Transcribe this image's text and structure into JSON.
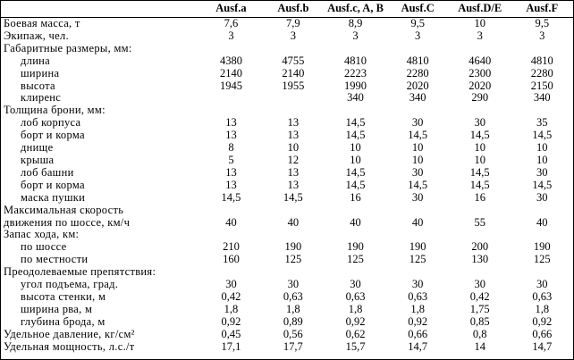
{
  "table": {
    "header": [
      "Ausf.a",
      "Ausf.b",
      "Ausf.c, A, B",
      "Ausf.C",
      "Ausf.D/E",
      "Ausf.F"
    ],
    "rows": [
      {
        "label": "Боевая масса, т",
        "cells": [
          "7,6",
          "7,9",
          "8,9",
          "9,5",
          "10",
          "9,5"
        ]
      },
      {
        "label": "Экипаж, чел.",
        "cells": [
          "3",
          "3",
          "3",
          "3",
          "3",
          "3"
        ]
      },
      {
        "label": "Габаритные размеры, мм:",
        "items": [
          {
            "label": "длина",
            "cells": [
              "4380",
              "4755",
              "4810",
              "4810",
              "4640",
              "4810"
            ]
          },
          {
            "label": "ширина",
            "cells": [
              "2140",
              "2140",
              "2223",
              "2280",
              "2300",
              "2280"
            ]
          },
          {
            "label": "высота",
            "cells": [
              "1945",
              "1955",
              "1990",
              "2020",
              "2020",
              "2150"
            ]
          },
          {
            "label": "клиренс",
            "cells": [
              null,
              null,
              "340",
              "340",
              "290",
              "340"
            ]
          }
        ]
      },
      {
        "label": "Толщина брони, мм:",
        "items": [
          {
            "label": "лоб корпуса",
            "cells": [
              "13",
              "13",
              "14,5",
              "30",
              "30",
              "35"
            ]
          },
          {
            "label": "борт и корма",
            "cells": [
              "13",
              "13",
              "14,5",
              "14,5",
              "14,5",
              "14,5"
            ]
          },
          {
            "label": "днище",
            "cells": [
              "8",
              "10",
              "10",
              "10",
              "10",
              "10"
            ]
          },
          {
            "label": "крыша",
            "cells": [
              "5",
              "12",
              "10",
              "10",
              "10",
              "10"
            ]
          },
          {
            "label": "лоб башни",
            "cells": [
              "13",
              "13",
              "14,5",
              "30",
              "14,5",
              "30"
            ]
          },
          {
            "label": "борт и корма",
            "cells": [
              "13",
              "13",
              "14,5",
              "14,5",
              "14,5",
              "14,5"
            ]
          },
          {
            "label": "маска пушки",
            "cells": [
              "14,5",
              "14,5",
              "16",
              "30",
              "16",
              "30"
            ]
          }
        ]
      },
      {
        "label": [
          "Максимальная скорость",
          "движения по шоссе, км/ч"
        ],
        "cells": [
          "40",
          "40",
          "40",
          "40",
          "55",
          "40"
        ]
      },
      {
        "label": "Запас хода, км:",
        "items": [
          {
            "label": "по шоссе",
            "cells": [
              "210",
              "190",
              "190",
              "190",
              "200",
              "190"
            ]
          },
          {
            "label": "по местности",
            "cells": [
              "160",
              "125",
              "125",
              "125",
              "130",
              "125"
            ]
          }
        ]
      },
      {
        "label": "Преодолеваемые препятствия:",
        "items": [
          {
            "label": "угол подъема, град.",
            "cells": [
              "30",
              "30",
              "30",
              "30",
              "30",
              "30"
            ]
          },
          {
            "label": "высота стенки, м",
            "cells": [
              "0,42",
              "0,63",
              "0,63",
              "0,63",
              "0,42",
              "0,63"
            ]
          },
          {
            "label": "ширина рва, м",
            "cells": [
              "1,8",
              "1,8",
              "1,8",
              "1,8",
              "1,75",
              "1,8"
            ]
          },
          {
            "label": "глубина брода, м",
            "cells": [
              "0,92",
              "0,89",
              "0,92",
              "0,92",
              "0,85",
              "0,92"
            ]
          }
        ]
      },
      {
        "label": "Удельное давление, кг/см²",
        "cells": [
          "0,45",
          "0,56",
          "0,62",
          "0,66",
          "0,8",
          "0,66"
        ]
      },
      {
        "label": "Удельная мощность, л.с./т",
        "cells": [
          "17,1",
          "17,7",
          "15,7",
          "14,7",
          "14",
          "14,7"
        ]
      }
    ]
  }
}
